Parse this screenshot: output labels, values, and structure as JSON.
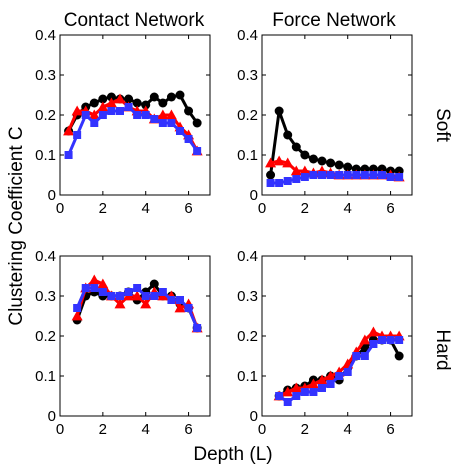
{
  "column_titles": [
    "Contact Network",
    "Force Network"
  ],
  "row_labels": [
    "Soft",
    "Hard"
  ],
  "xlabel": "Depth (L)",
  "ylabel": "Clustering Coefficient C",
  "colors": {
    "black": "#000000",
    "red": "#ff0000",
    "blue": "#3333ff"
  },
  "chart_data": [
    {
      "type": "line",
      "panel": "contact-soft",
      "xlim": [
        0,
        7
      ],
      "ylim": [
        0,
        0.4
      ],
      "xticks": [
        "0",
        "2",
        "4",
        "6"
      ],
      "yticks": [
        "0",
        "0.1",
        "0.2",
        "0.3",
        "0.4"
      ],
      "series": [
        {
          "color": "#000000",
          "marker": "circle",
          "x": [
            0.4,
            0.8,
            1.2,
            1.6,
            2.0,
            2.4,
            2.8,
            3.2,
            3.6,
            4.0,
            4.4,
            4.8,
            5.2,
            5.6,
            6.0,
            6.4
          ],
          "y": [
            0.16,
            0.2,
            0.22,
            0.23,
            0.24,
            0.245,
            0.24,
            0.24,
            0.23,
            0.225,
            0.245,
            0.23,
            0.245,
            0.25,
            0.21,
            0.18
          ]
        },
        {
          "color": "#ff0000",
          "marker": "triangle",
          "x": [
            0.4,
            0.8,
            1.2,
            1.6,
            2.0,
            2.4,
            2.8,
            3.2,
            3.6,
            4.0,
            4.4,
            4.8,
            5.2,
            5.6,
            6.0,
            6.4
          ],
          "y": [
            0.16,
            0.21,
            0.21,
            0.2,
            0.22,
            0.23,
            0.24,
            0.22,
            0.21,
            0.21,
            0.19,
            0.2,
            0.2,
            0.17,
            0.15,
            0.11
          ]
        },
        {
          "color": "#3333ff",
          "marker": "square",
          "x": [
            0.4,
            0.8,
            1.2,
            1.6,
            2.0,
            2.4,
            2.8,
            3.2,
            3.6,
            4.0,
            4.4,
            4.8,
            5.2,
            5.6,
            6.0,
            6.4
          ],
          "y": [
            0.1,
            0.15,
            0.2,
            0.18,
            0.2,
            0.21,
            0.21,
            0.22,
            0.2,
            0.2,
            0.19,
            0.18,
            0.18,
            0.16,
            0.14,
            0.11
          ]
        }
      ]
    },
    {
      "type": "line",
      "panel": "force-soft",
      "xlim": [
        0,
        7
      ],
      "ylim": [
        0,
        0.4
      ],
      "xticks": [
        "0",
        "2",
        "4",
        "6"
      ],
      "yticks": [
        "0",
        "0.1",
        "0.2",
        "0.3",
        "0.4"
      ],
      "series": [
        {
          "color": "#000000",
          "marker": "circle",
          "x": [
            0.4,
            0.8,
            1.2,
            1.6,
            2.0,
            2.4,
            2.8,
            3.2,
            3.6,
            4.0,
            4.4,
            4.8,
            5.2,
            5.6,
            6.0,
            6.4
          ],
          "y": [
            0.05,
            0.21,
            0.15,
            0.12,
            0.1,
            0.09,
            0.085,
            0.08,
            0.075,
            0.07,
            0.065,
            0.065,
            0.065,
            0.065,
            0.06,
            0.06
          ]
        },
        {
          "color": "#ff0000",
          "marker": "triangle",
          "x": [
            0.4,
            0.8,
            1.2,
            1.6,
            2.0,
            2.4,
            2.8,
            3.2,
            3.6,
            4.0,
            4.4,
            4.8,
            5.2,
            5.6,
            6.0,
            6.4
          ],
          "y": [
            0.08,
            0.085,
            0.08,
            0.06,
            0.06,
            0.055,
            0.06,
            0.055,
            0.05,
            0.05,
            0.05,
            0.05,
            0.05,
            0.05,
            0.05,
            0.045
          ]
        },
        {
          "color": "#3333ff",
          "marker": "square",
          "x": [
            0.4,
            0.8,
            1.2,
            1.6,
            2.0,
            2.4,
            2.8,
            3.2,
            3.6,
            4.0,
            4.4,
            4.8,
            5.2,
            5.6,
            6.0,
            6.4
          ],
          "y": [
            0.03,
            0.03,
            0.035,
            0.04,
            0.045,
            0.05,
            0.05,
            0.05,
            0.05,
            0.05,
            0.05,
            0.05,
            0.05,
            0.05,
            0.045,
            0.045
          ]
        }
      ]
    },
    {
      "type": "line",
      "panel": "contact-hard",
      "xlim": [
        0,
        7
      ],
      "ylim": [
        0,
        0.4
      ],
      "xticks": [
        "0",
        "2",
        "4",
        "6"
      ],
      "yticks": [
        "0",
        "0.1",
        "0.2",
        "0.3",
        "0.4"
      ],
      "series": [
        {
          "color": "#000000",
          "marker": "circle",
          "x": [
            0.8,
            1.2,
            1.6,
            2.0,
            2.4,
            2.8,
            3.2,
            3.6,
            4.0,
            4.4,
            4.8,
            5.2,
            5.6,
            6.0,
            6.4
          ],
          "y": [
            0.24,
            0.3,
            0.31,
            0.3,
            0.3,
            0.3,
            0.31,
            0.29,
            0.31,
            0.33,
            0.3,
            0.3,
            0.28,
            0.27,
            0.22
          ]
        },
        {
          "color": "#ff0000",
          "marker": "triangle",
          "x": [
            0.8,
            1.2,
            1.6,
            2.0,
            2.4,
            2.8,
            3.2,
            3.6,
            4.0,
            4.4,
            4.8,
            5.2,
            5.6,
            6.0,
            6.4
          ],
          "y": [
            0.25,
            0.32,
            0.34,
            0.33,
            0.3,
            0.28,
            0.3,
            0.3,
            0.28,
            0.31,
            0.3,
            0.3,
            0.27,
            0.28,
            0.22
          ]
        },
        {
          "color": "#3333ff",
          "marker": "square",
          "x": [
            0.8,
            1.2,
            1.6,
            2.0,
            2.4,
            2.8,
            3.2,
            3.6,
            4.0,
            4.4,
            4.8,
            5.2,
            5.6,
            6.0,
            6.4
          ],
          "y": [
            0.27,
            0.32,
            0.32,
            0.31,
            0.3,
            0.3,
            0.31,
            0.32,
            0.3,
            0.3,
            0.31,
            0.29,
            0.29,
            0.27,
            0.22
          ]
        }
      ]
    },
    {
      "type": "line",
      "panel": "force-hard",
      "xlim": [
        0,
        7
      ],
      "ylim": [
        0,
        0.4
      ],
      "xticks": [
        "0",
        "2",
        "4",
        "6"
      ],
      "yticks": [
        "0",
        "0.1",
        "0.2",
        "0.3",
        "0.4"
      ],
      "series": [
        {
          "color": "#000000",
          "marker": "circle",
          "x": [
            0.8,
            1.2,
            1.6,
            2.0,
            2.4,
            2.8,
            3.2,
            3.6,
            4.0,
            4.4,
            4.8,
            5.2,
            5.6,
            6.0,
            6.4
          ],
          "y": [
            0.05,
            0.065,
            0.07,
            0.075,
            0.09,
            0.09,
            0.1,
            0.09,
            0.12,
            0.15,
            0.17,
            0.19,
            0.19,
            0.19,
            0.15
          ]
        },
        {
          "color": "#ff0000",
          "marker": "triangle",
          "x": [
            0.8,
            1.2,
            1.6,
            2.0,
            2.4,
            2.8,
            3.2,
            3.6,
            4.0,
            4.4,
            4.8,
            5.2,
            5.6,
            6.0,
            6.4
          ],
          "y": [
            0.05,
            0.06,
            0.07,
            0.07,
            0.08,
            0.09,
            0.1,
            0.11,
            0.13,
            0.16,
            0.19,
            0.21,
            0.2,
            0.2,
            0.2
          ]
        },
        {
          "color": "#3333ff",
          "marker": "square",
          "x": [
            0.8,
            1.2,
            1.6,
            2.0,
            2.4,
            2.8,
            3.2,
            3.6,
            4.0,
            4.4,
            4.8,
            5.2,
            5.6,
            6.0,
            6.4
          ],
          "y": [
            0.05,
            0.035,
            0.05,
            0.06,
            0.06,
            0.07,
            0.08,
            0.1,
            0.11,
            0.15,
            0.15,
            0.18,
            0.19,
            0.19,
            0.19
          ]
        }
      ]
    }
  ]
}
